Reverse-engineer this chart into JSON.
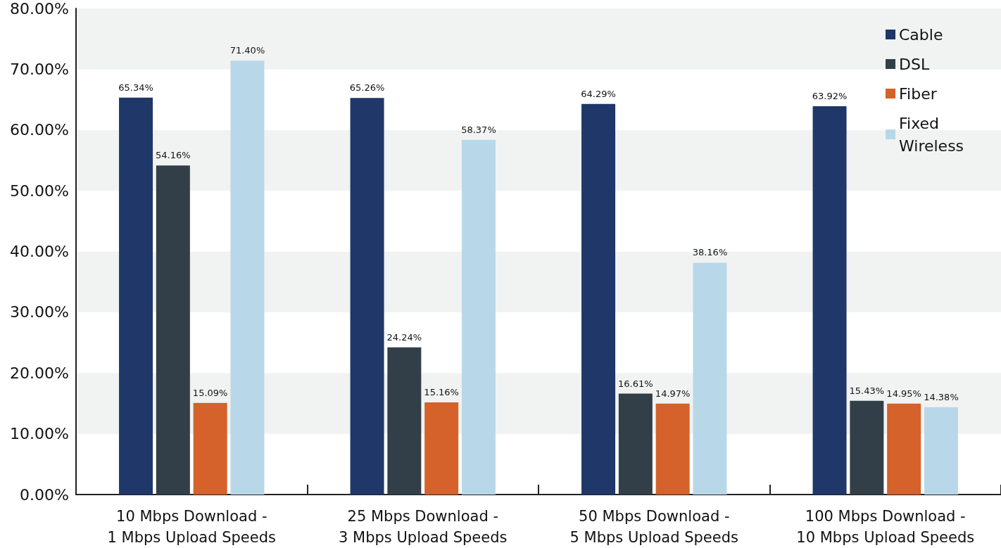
{
  "chart_data": {
    "type": "bar",
    "categories": [
      "10 Mbps Download -\n1 Mbps Upload Speeds",
      "25 Mbps Download -\n3 Mbps Upload Speeds",
      "50 Mbps Download -\n5 Mbps Upload Speeds",
      "100 Mbps Download -\n10 Mbps Upload Speeds"
    ],
    "series": [
      {
        "name": "Cable",
        "color": "#1f3769",
        "values": [
          65.34,
          65.26,
          64.29,
          63.92
        ],
        "value_labels": [
          "65.34%",
          "65.26%",
          "64.29%",
          "63.92%"
        ]
      },
      {
        "name": "DSL",
        "color": "#333f48",
        "values": [
          54.16,
          24.24,
          16.61,
          15.43
        ],
        "value_labels": [
          "54.16%",
          "24.24%",
          "16.61%",
          "15.43%"
        ]
      },
      {
        "name": "Fiber",
        "color": "#d4622a",
        "values": [
          15.09,
          15.16,
          14.97,
          14.95
        ],
        "value_labels": [
          "15.09%",
          "15.16%",
          "14.97%",
          "14.95%"
        ]
      },
      {
        "name": "Fixed Wireless",
        "color": "#b8d8ea",
        "values": [
          71.4,
          58.37,
          38.16,
          14.38
        ],
        "value_labels": [
          "71.40%",
          "58.37%",
          "38.16%",
          "14.38%"
        ]
      }
    ],
    "ylim": [
      0,
      80
    ],
    "yticks": [
      {
        "value": 0,
        "label": "0.00%"
      },
      {
        "value": 10,
        "label": "10.00%"
      },
      {
        "value": 20,
        "label": "20.00%"
      },
      {
        "value": 30,
        "label": "30.00%"
      },
      {
        "value": 40,
        "label": "40.00%"
      },
      {
        "value": 50,
        "label": "50.00%"
      },
      {
        "value": 60,
        "label": "60.00%"
      },
      {
        "value": 70,
        "label": "70.00%"
      },
      {
        "value": 80,
        "label": "80.00%"
      }
    ],
    "legend": "top right"
  }
}
